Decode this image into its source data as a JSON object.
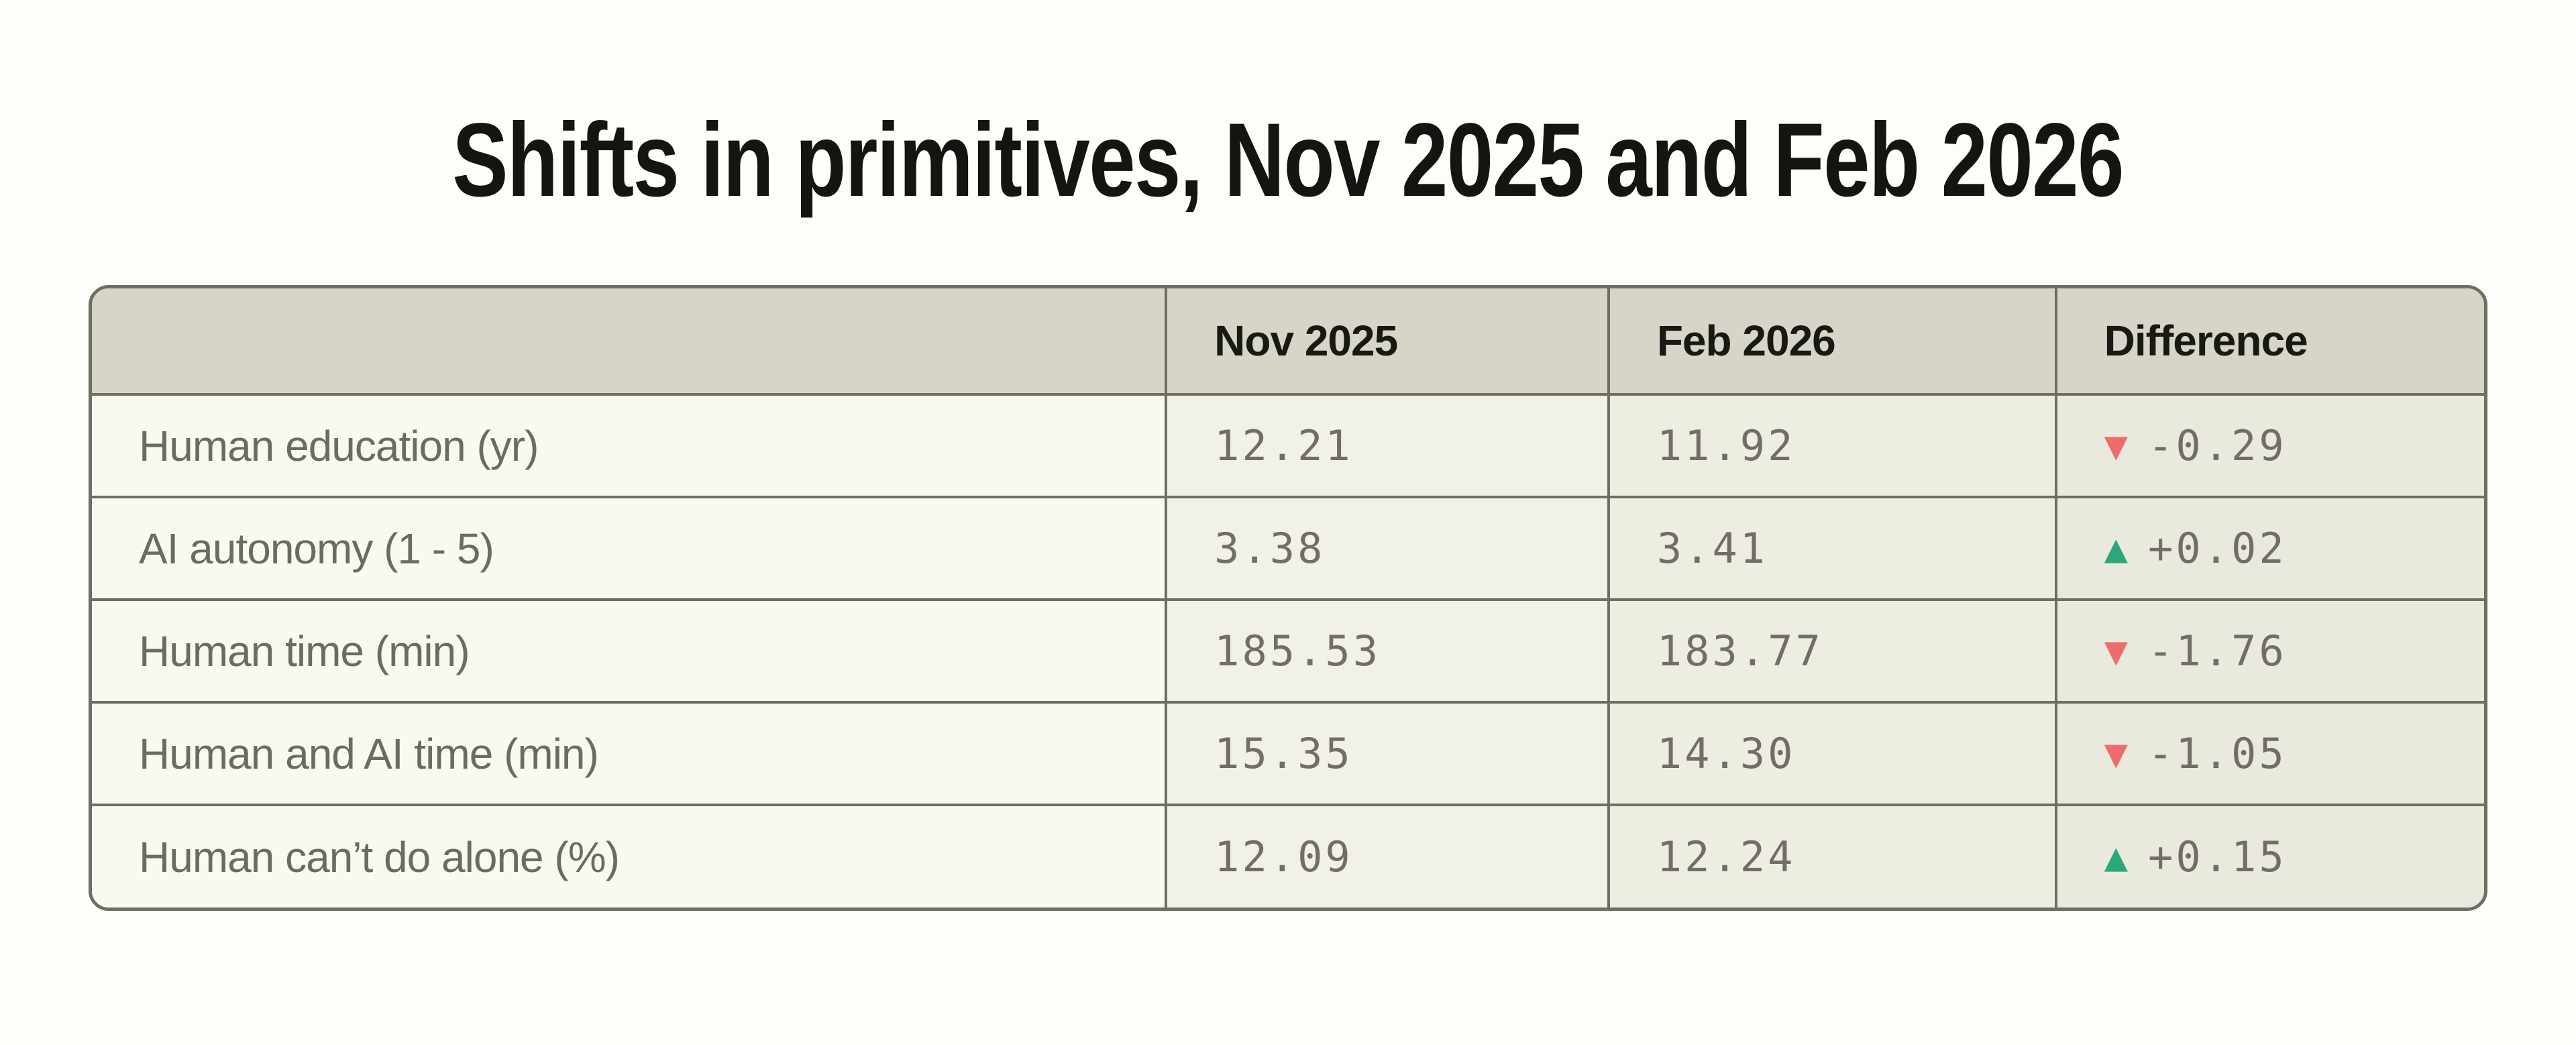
{
  "title": "Shifts in primitives, Nov 2025 and Feb 2026",
  "table": {
    "columns": [
      "",
      "Nov 2025",
      "Feb 2026",
      "Difference"
    ],
    "rows": [
      {
        "label": "Human education (yr)",
        "nov": "12.21",
        "feb": "11.92",
        "diff": {
          "icon": "▼",
          "value": "-0.29",
          "trend": "down"
        }
      },
      {
        "label": "AI autonomy (1 - 5)",
        "nov": "3.38",
        "feb": "3.41",
        "diff": {
          "icon": "▲",
          "value": "+0.02",
          "trend": "up"
        }
      },
      {
        "label": "Human time (min)",
        "nov": "185.53",
        "feb": "183.77",
        "diff": {
          "icon": "▼",
          "value": "-1.76",
          "trend": "down"
        }
      },
      {
        "label": "Human and AI time (min)",
        "nov": "15.35",
        "feb": "14.30",
        "diff": {
          "icon": "▼",
          "value": "-1.05",
          "trend": "down"
        }
      },
      {
        "label": "Human can’t do alone (%)",
        "nov": "12.09",
        "feb": "12.24",
        "diff": {
          "icon": "▲",
          "value": "+0.15",
          "trend": "up"
        }
      }
    ]
  },
  "colors": {
    "up": "#2aa87a",
    "down": "#ee6c6c",
    "border": "#6e6e62",
    "header_bg": "#d7d5c8",
    "label_cell_bg": "#f9f8f1",
    "nov_cell_bg": "#f2f1e8",
    "feb_cell_bg": "#eeede2",
    "diff_cell_bg": "#eae9dd"
  },
  "chart_data": {
    "type": "table",
    "title": "Shifts in primitives, Nov 2025 and Feb 2026",
    "columns": [
      "",
      "Nov 2025",
      "Feb 2026",
      "Difference"
    ],
    "rows": [
      {
        "label": "Human education (yr)",
        "nov_2025": 12.21,
        "feb_2026": 11.92,
        "difference": -0.29
      },
      {
        "label": "AI autonomy (1 - 5)",
        "nov_2025": 3.38,
        "feb_2026": 3.41,
        "difference": 0.02
      },
      {
        "label": "Human time (min)",
        "nov_2025": 185.53,
        "feb_2026": 183.77,
        "difference": -1.76
      },
      {
        "label": "Human and AI time (min)",
        "nov_2025": 15.35,
        "feb_2026": 14.3,
        "difference": -1.05
      },
      {
        "label": "Human can’t do alone (%)",
        "nov_2025": 12.09,
        "feb_2026": 12.24,
        "difference": 0.15
      }
    ]
  }
}
